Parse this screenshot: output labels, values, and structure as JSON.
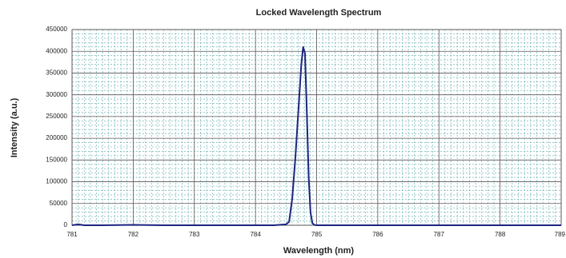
{
  "chart_data": {
    "type": "line",
    "title": "Locked Wavelength Spectrum",
    "x_label": "Wavelength (nm)",
    "y_label": "Intensity (a.u.)",
    "xlim": [
      781,
      789
    ],
    "ylim": [
      0,
      450000
    ],
    "xticks": [
      781,
      782,
      783,
      784,
      785,
      786,
      787,
      788,
      789
    ],
    "yticks": [
      0,
      50000,
      100000,
      150000,
      200000,
      250000,
      300000,
      350000,
      400000,
      450000
    ],
    "grid": true,
    "series": [
      {
        "name": "Spectrum",
        "color": "#1c2580",
        "x": [
          781,
          781.1,
          781.2,
          781.5,
          782,
          782.5,
          783,
          783.5,
          784,
          784.3,
          784.5,
          784.55,
          784.6,
          784.65,
          784.7,
          784.75,
          784.78,
          784.81,
          784.84,
          784.87,
          784.9,
          784.93,
          784.96,
          785,
          785.5,
          786,
          786.5,
          787,
          787.5,
          788,
          788.5,
          789
        ],
        "values": [
          0,
          2000,
          0,
          0,
          1000,
          0,
          0,
          0,
          0,
          0,
          2000,
          8000,
          60000,
          150000,
          260000,
          370000,
          410000,
          395000,
          260000,
          110000,
          30000,
          5000,
          1000,
          0,
          0,
          0,
          0,
          0,
          0,
          0,
          0,
          0
        ]
      }
    ]
  }
}
